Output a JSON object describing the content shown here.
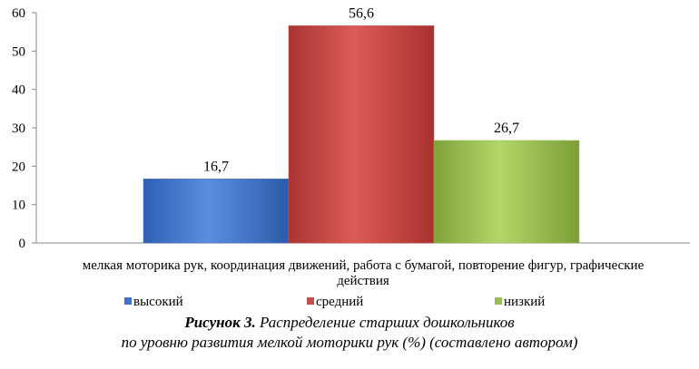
{
  "chart_data": {
    "type": "bar",
    "categories": [
      "мелкая моторика рук, координация движений, работа с бумагой, повторение фигур, графические действия"
    ],
    "category_label_lines": [
      "мелкая моторика рук, координация движений, работа с бумагой, повторение фигур, графические",
      "действия"
    ],
    "series": [
      {
        "name": "высокий",
        "values": [
          16.7
        ],
        "label": "16,7",
        "color": "#4472C4"
      },
      {
        "name": "средний",
        "values": [
          56.6
        ],
        "label": "56,6",
        "color": "#C0504D"
      },
      {
        "name": "низкий",
        "values": [
          26.7
        ],
        "label": "26,7",
        "color": "#9BBB59"
      }
    ],
    "ylim": [
      0,
      60
    ],
    "yticks": [
      0,
      10,
      20,
      30,
      40,
      50,
      60
    ],
    "grid": false,
    "legend_position": "bottom"
  },
  "caption": {
    "figure_label": "Рисунок 3.",
    "line1": " Распределение старших дошкольников",
    "line2": "по уровню развития мелкой моторики рук (%) (составлено автором)"
  }
}
